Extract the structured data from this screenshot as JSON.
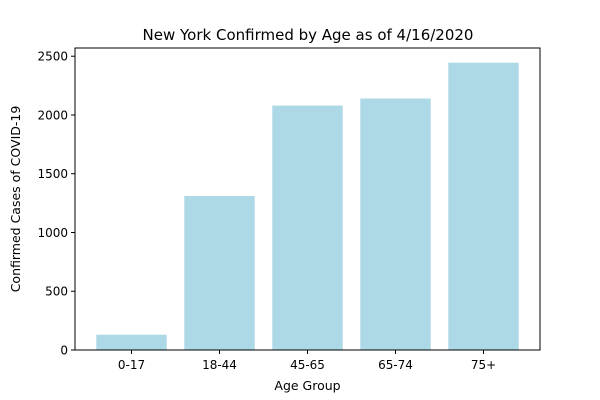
{
  "chart_data": {
    "type": "bar",
    "title": "New York Confirmed by Age as of 4/16/2020",
    "xlabel": "Age Group",
    "ylabel": "Confirmed Cases of COVID-19",
    "categories": [
      "0-17",
      "18-44",
      "45-65",
      "65-74",
      "75+"
    ],
    "values": [
      130,
      1310,
      2080,
      2140,
      2445
    ],
    "ylim": [
      0,
      2570
    ],
    "yticks": [
      0,
      500,
      1000,
      1500,
      2000,
      2500
    ],
    "grid": false,
    "bar_color": "#add8e6"
  }
}
